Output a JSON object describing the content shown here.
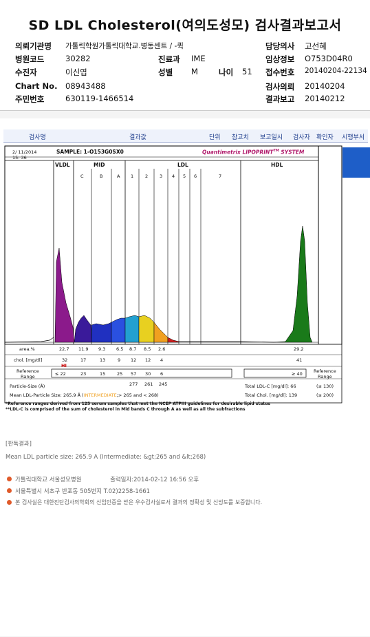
{
  "title": "SD LDL Cholesterol(여의도성모) 검사결과보고서",
  "info": {
    "institution_label": "의뢰기관명",
    "institution_value": "가톨릭학원가톨릭대학교.병동센트 / -퀵",
    "doctor_label": "담당의사",
    "doctor_value": "고선혜",
    "hospital_code_label": "병원코드",
    "hospital_code_value": "30282",
    "dept_label": "진료과",
    "dept_value": "IME",
    "clinical_label": "임상정보",
    "clinical_value": "O753D04R0",
    "patient_label": "수진자",
    "patient_value": "이신엽",
    "sex_label": "성별",
    "sex_value": "M",
    "age_label": "나이",
    "age_value": "51",
    "receipt_label": "접수번호",
    "receipt_value": "20140204-22134",
    "chart_label": "Chart No.",
    "chart_value": "08943488",
    "request_label": "검사의뢰",
    "request_value": "20140204",
    "id_label": "주민번호",
    "id_value": "630119-1466514",
    "report_label": "결과보고",
    "report_value": "20140212"
  },
  "columns": [
    "검사명",
    "결과값",
    "단위",
    "참고치",
    "보고일시",
    "검사자",
    "확인자",
    "시행부서"
  ],
  "printout": {
    "date": "2/ 11/2014",
    "time": "15: 36",
    "sample": "SAMPLE:  1-O153G0SX0",
    "brand": "Quantimetrix LIPOPRINT",
    "brand_tm": "TM",
    "brand_system": " SYSTEM",
    "bands": [
      "VLDL",
      "MID",
      "LDL",
      "HDL"
    ],
    "mid_sub": [
      "C",
      "B",
      "A"
    ],
    "ldl_sub": [
      "1",
      "2",
      "3",
      "4",
      "5",
      "6",
      "7"
    ],
    "area_label": "area.%",
    "area_values": [
      "22.7",
      "11.9",
      "9.3",
      "6.5",
      "8.7",
      "8.5",
      "2.6"
    ],
    "area_hdl": "29.2",
    "chol_label": "chol. [mg/dl]",
    "chol_values": [
      "32",
      "17",
      "13",
      "9",
      "12",
      "12",
      "4"
    ],
    "chol_hdl": "41",
    "hi_flag": "HI",
    "ref_label_1": "Reference",
    "ref_label_2": "Range",
    "ref_values": [
      "≤ 22",
      "23",
      "15",
      "25",
      "57",
      "30",
      "6"
    ],
    "ref_hdl": "≥ 40",
    "particle_label": "Particle-Size (Å)",
    "particle_values": [
      "277",
      "261",
      "245"
    ],
    "mean_label": "Mean LDL-Particle Size:",
    "mean_value": "265.9 Å",
    "mean_class": "INTERMEDIATE",
    "mean_range": ";> 265 and < 268)",
    "total_ldl_label": "Total LDL-C [mg/dl]:",
    "total_ldl_value": "66",
    "total_ldl_ref": "(≤ 130)",
    "total_chol_label": "Total Chol. [mg/dl]:",
    "total_chol_value": "139",
    "total_chol_ref": "(≤ 200)",
    "footnote1": "*Reference ranges derived from 125 serum samples that met the NCEP ATPIII guidelines for desirable lipid status",
    "footnote2": "**LDL-C is comprised of the sum of cholesterol in Mid bands C through A as well as all the subfractions"
  },
  "interpretation_title": "[판독결과]",
  "interpretation_text": "Mean LDL particle size: 265.9 A (Intermediate: &gt;265 and &lt;268)",
  "footer": {
    "line1_org": "가톨릭대학교 서울성모병원",
    "line1_date": "출력일자:2014-02-12 16:56 오후",
    "line2": "서울특별시 서초구 반포동 505번지 T.02)2258-1661",
    "line3": "본 검사실은 대한진단검사의학회의 신임인증을 받은 우수검사실로서 결과의 정확성 및 신빙도를 보증합니다."
  },
  "colors": {
    "vldl": "#8b1a8b",
    "c_band": "#3a1a9a",
    "b_band": "#2030c0",
    "a_band": "#2a50e0",
    "ldl1": "#22a0d0",
    "ldl2": "#e8d020",
    "ldl3": "#f0a020",
    "ldl4": "#d02020",
    "hdl": "#1a7a1a"
  }
}
